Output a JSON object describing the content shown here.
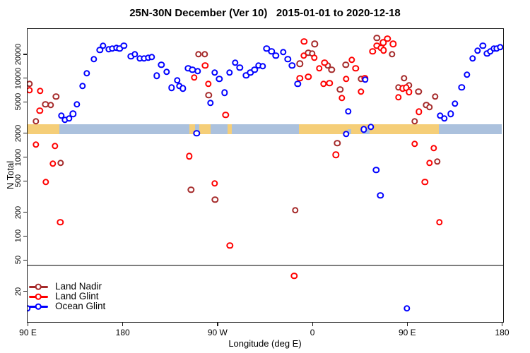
{
  "title": "25N-30N December (Ver 10)   2015-01-01 to 2020-12-18",
  "chart_data": {
    "type": "scatter",
    "title": "25N-30N December (Ver 10)   2015-01-01 to 2020-12-18",
    "xlabel": "Longitude (deg E)",
    "ylabel": "N Total",
    "x_axis": {
      "note": "longitude wrapped eastward, 90E to 180 (i.e. 90..540 deg)",
      "range_deg": [
        90,
        540
      ],
      "ticks": [
        {
          "deg": 90,
          "label": "90 E"
        },
        {
          "deg": 180,
          "label": "180"
        },
        {
          "deg": 270,
          "label": "90 W"
        },
        {
          "deg": 360,
          "label": "0"
        },
        {
          "deg": 450,
          "label": "90 E"
        },
        {
          "deg": 540,
          "label": "180"
        }
      ]
    },
    "y_axis": {
      "scale": "log",
      "range": [
        9,
        42000
      ],
      "ticks": [
        20,
        50,
        100,
        200,
        500,
        1000,
        2000,
        5000,
        10000,
        20000
      ]
    },
    "reference_line": {
      "value": 42,
      "color": "#7e7e7e"
    },
    "surface_band": {
      "center_value": 2250,
      "land_color": "#F5CE78",
      "ocean_color": "#ABC1DD",
      "segments": [
        {
          "surface": "land",
          "from": 90,
          "to": 120
        },
        {
          "surface": "ocean",
          "from": 120,
          "to": 243.3
        },
        {
          "surface": "land",
          "from": 243.3,
          "to": 249
        },
        {
          "surface": "ocean",
          "from": 249,
          "to": 252.7
        },
        {
          "surface": "land",
          "from": 252.7,
          "to": 264
        },
        {
          "surface": "ocean",
          "from": 264,
          "to": 280
        },
        {
          "surface": "land",
          "from": 280,
          "to": 283.5
        },
        {
          "surface": "ocean",
          "from": 283.5,
          "to": 347.8
        },
        {
          "surface": "land",
          "from": 347.8,
          "to": 480.4
        },
        {
          "surface": "ocean",
          "from": 480.4,
          "to": 540
        }
      ],
      "partial_ocean_segments": [
        [
          394,
          397
        ],
        [
          408,
          414.5
        ]
      ]
    },
    "legend": {
      "position": "bottom-left"
    },
    "series": [
      {
        "name": "Land Nadir",
        "color": "#A52A2A",
        "points": [
          [
            92,
            8400
          ],
          [
            117,
            5800
          ],
          [
            107,
            4600
          ],
          [
            112,
            4500
          ],
          [
            98,
            2810
          ],
          [
            121.5,
            840
          ],
          [
            252,
            20000
          ],
          [
            258,
            20000
          ],
          [
            262,
            6000
          ],
          [
            245,
            380
          ],
          [
            268,
            286
          ],
          [
            362.5,
            26700
          ],
          [
            356.5,
            20800
          ],
          [
            360,
            20300
          ],
          [
            348.5,
            15000
          ],
          [
            375,
            14300
          ],
          [
            378.5,
            12700
          ],
          [
            386.5,
            7100
          ],
          [
            392,
            14600
          ],
          [
            406.5,
            9700
          ],
          [
            421.5,
            31900
          ],
          [
            384,
            1490
          ],
          [
            344,
            210
          ],
          [
            436,
            19900
          ],
          [
            447.5,
            9900
          ],
          [
            442,
            7550
          ],
          [
            452,
            8000
          ],
          [
            461,
            6660
          ],
          [
            468.5,
            4520
          ],
          [
            471.5,
            4250
          ],
          [
            477,
            5780
          ],
          [
            457.5,
            2810
          ],
          [
            479,
            870
          ]
        ]
      },
      {
        "name": "Land Glint",
        "color": "#FF0000",
        "points": [
          [
            92,
            6960
          ],
          [
            102,
            6810
          ],
          [
            101.5,
            3830
          ],
          [
            98,
            1430
          ],
          [
            116,
            1370
          ],
          [
            114,
            815
          ],
          [
            107.5,
            480
          ],
          [
            121,
            148
          ],
          [
            258.5,
            14300
          ],
          [
            248,
            10100
          ],
          [
            261.5,
            8400
          ],
          [
            278,
            3380
          ],
          [
            243.5,
            1020
          ],
          [
            267.5,
            460
          ],
          [
            282,
            75
          ],
          [
            352.5,
            28900
          ],
          [
            352,
            19100
          ],
          [
            362,
            17900
          ],
          [
            367,
            13200
          ],
          [
            372,
            15500
          ],
          [
            348.5,
            9900
          ],
          [
            356.5,
            10300
          ],
          [
            371,
            8400
          ],
          [
            376.5,
            8570
          ],
          [
            397.5,
            16800
          ],
          [
            401.5,
            13200
          ],
          [
            392.5,
            9700
          ],
          [
            388.5,
            5560
          ],
          [
            410,
            9900
          ],
          [
            406.5,
            6660
          ],
          [
            417.5,
            21700
          ],
          [
            421.5,
            25400
          ],
          [
            425.5,
            24000
          ],
          [
            427.5,
            27800
          ],
          [
            382.5,
            1060
          ],
          [
            343,
            31
          ],
          [
            431.5,
            31300
          ],
          [
            437,
            26700
          ],
          [
            428,
            22200
          ],
          [
            446,
            7300
          ],
          [
            449.5,
            7460
          ],
          [
            452,
            6590
          ],
          [
            442,
            5680
          ],
          [
            461.5,
            3730
          ],
          [
            457.5,
            1450
          ],
          [
            475.5,
            1290
          ],
          [
            471.5,
            836
          ],
          [
            467,
            480
          ],
          [
            481,
            148
          ]
        ]
      },
      {
        "name": "Ocean Glint",
        "color": "#0000FF",
        "points": [
          [
            153,
            17200
          ],
          [
            161.5,
            25400
          ],
          [
            158.5,
            22500
          ],
          [
            167,
            23000
          ],
          [
            170.5,
            23500
          ],
          [
            174.5,
            24000
          ],
          [
            177.5,
            23500
          ],
          [
            181.5,
            25400
          ],
          [
            188,
            18700
          ],
          [
            192,
            19900
          ],
          [
            196.5,
            17600
          ],
          [
            200.5,
            17600
          ],
          [
            146,
            11400
          ],
          [
            142,
            7900
          ],
          [
            137,
            4600
          ],
          [
            122,
            3320
          ],
          [
            125.5,
            2930
          ],
          [
            129.5,
            3060
          ],
          [
            133,
            3480
          ],
          [
            204.5,
            17900
          ],
          [
            208,
            18300
          ],
          [
            217,
            14600
          ],
          [
            222,
            11900
          ],
          [
            212.5,
            10600
          ],
          [
            226.5,
            7460
          ],
          [
            232,
            9330
          ],
          [
            234,
            7900
          ],
          [
            237.5,
            7300
          ],
          [
            242.5,
            13200
          ],
          [
            246.5,
            12700
          ],
          [
            251.5,
            12200
          ],
          [
            267.5,
            11600
          ],
          [
            272,
            9700
          ],
          [
            277,
            6450
          ],
          [
            263.5,
            4830
          ],
          [
            281.5,
            11600
          ],
          [
            287,
            15500
          ],
          [
            291.5,
            13500
          ],
          [
            297.5,
            10700
          ],
          [
            301.5,
            11600
          ],
          [
            305.5,
            12700
          ],
          [
            309,
            14300
          ],
          [
            313,
            14000
          ],
          [
            250.5,
            1980
          ],
          [
            317,
            23500
          ],
          [
            321.5,
            21700
          ],
          [
            325.5,
            19100
          ],
          [
            332.5,
            21200
          ],
          [
            337,
            17200
          ],
          [
            341,
            14300
          ],
          [
            346.5,
            8400
          ],
          [
            410.5,
            9500
          ],
          [
            394.5,
            3760
          ],
          [
            392.5,
            1940
          ],
          [
            409,
            2230
          ],
          [
            416,
            2390
          ],
          [
            424.8,
            324
          ],
          [
            420.8,
            680
          ],
          [
            481.5,
            3320
          ],
          [
            485.5,
            3050
          ],
          [
            491.5,
            3480
          ],
          [
            495.5,
            4700
          ],
          [
            502,
            7550
          ],
          [
            507,
            10900
          ],
          [
            512.5,
            17600
          ],
          [
            517,
            22000
          ],
          [
            522,
            25400
          ],
          [
            526,
            20300
          ],
          [
            529,
            21700
          ],
          [
            532.5,
            23500
          ],
          [
            535,
            23500
          ],
          [
            538.5,
            24500
          ],
          [
            450,
            12
          ],
          [
            90,
            12
          ]
        ]
      }
    ]
  }
}
